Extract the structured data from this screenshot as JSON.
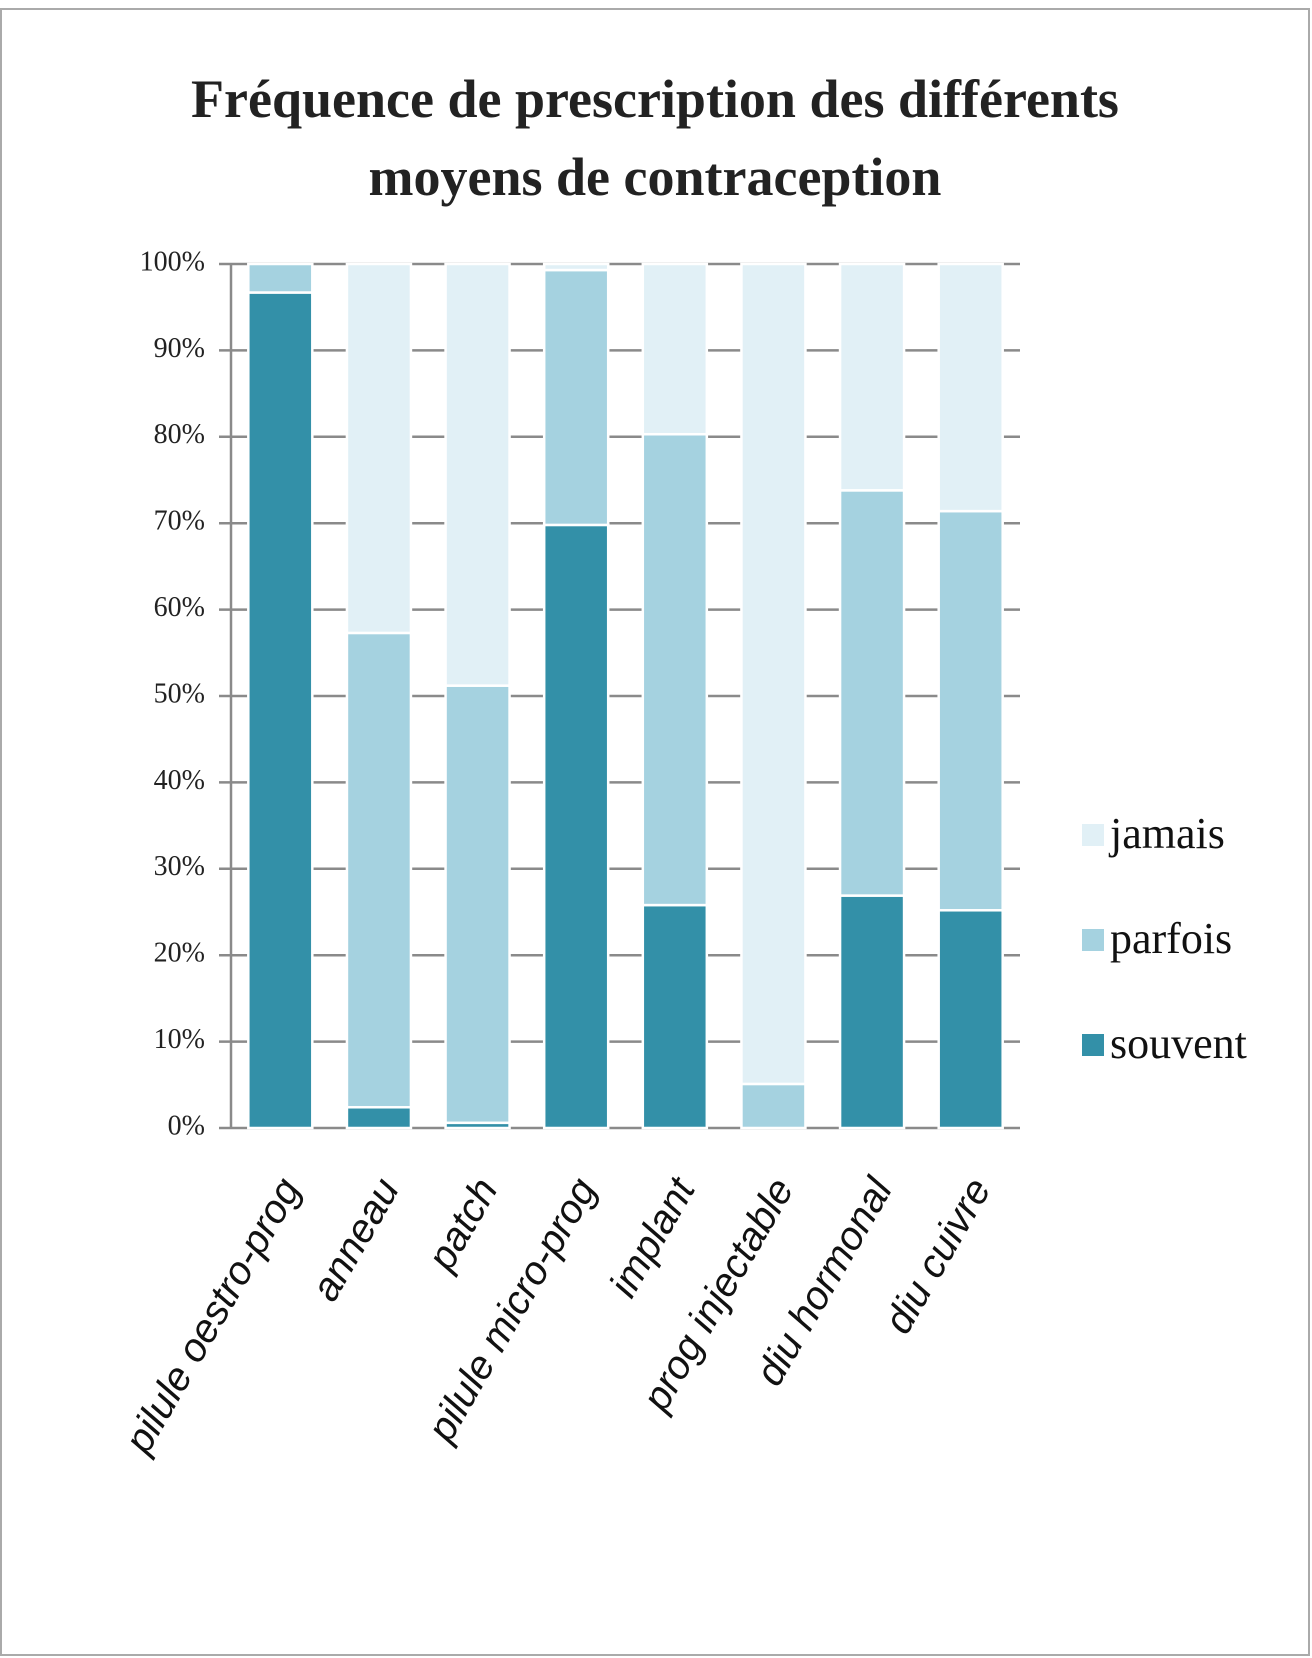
{
  "chart_data": {
    "type": "bar",
    "stacked": true,
    "title": "Fréquence de prescription des différents moyens de contraception",
    "categories": [
      "pilule oestro-prog",
      "anneau",
      "patch",
      "pilule micro-prog",
      "implant",
      "prog injectable",
      "diu hormonal",
      "diu cuivre"
    ],
    "series": [
      {
        "name": "souvent",
        "color": "#3390a8",
        "values": [
          96.7,
          2.4,
          0.6,
          69.8,
          25.8,
          0,
          26.9,
          25.2
        ]
      },
      {
        "name": "parfois",
        "color": "#a5d2e0",
        "values": [
          3.3,
          54.9,
          50.6,
          29.5,
          54.5,
          5.1,
          46.9,
          46.2
        ]
      },
      {
        "name": "jamais",
        "color": "#e1f0f6",
        "values": [
          0,
          42.7,
          48.8,
          0.7,
          19.7,
          94.9,
          26.2,
          28.6
        ]
      }
    ],
    "ylim": [
      0,
      100
    ],
    "yticks": [
      {
        "value": 0,
        "label": "0%"
      },
      {
        "value": 10,
        "label": "10%"
      },
      {
        "value": 20,
        "label": "20%"
      },
      {
        "value": 30,
        "label": "30%"
      },
      {
        "value": 40,
        "label": "40%"
      },
      {
        "value": 50,
        "label": "50%"
      },
      {
        "value": 60,
        "label": "60%"
      },
      {
        "value": 70,
        "label": "70%"
      },
      {
        "value": 80,
        "label": "80%"
      },
      {
        "value": 90,
        "label": "90%"
      },
      {
        "value": 100,
        "label": "100%"
      }
    ],
    "grid": true,
    "legend": "right"
  }
}
